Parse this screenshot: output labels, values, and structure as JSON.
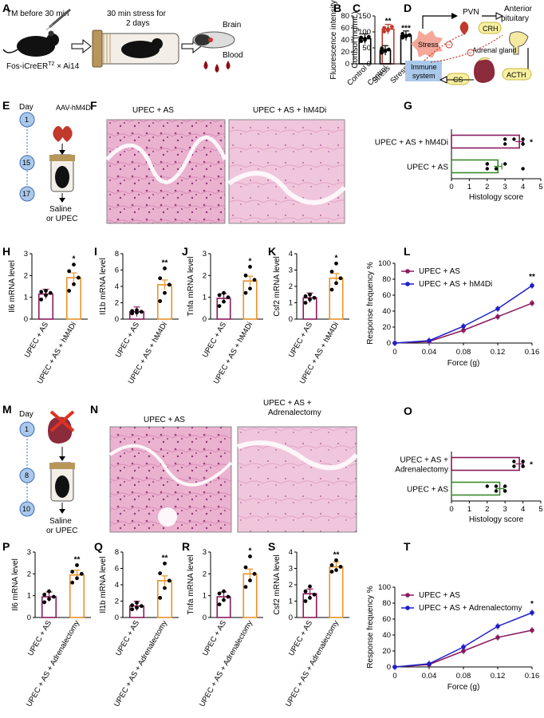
{
  "colors": {
    "purple": "#8b1a5e",
    "orange": "#e8922a",
    "green": "#3a8a2a",
    "blue": "#1f1fc8",
    "red_marker": "#c0392b",
    "sky": "#aac8ea",
    "he_pink": "#e6a8c8",
    "he_dark": "#b45a96"
  },
  "panels": {
    "A": {
      "label": "A",
      "tm": "TM before 30 min",
      "stress": "30 min stress for",
      "stress2": "2 days",
      "mouse": "Fos-iCreER",
      "sup": "T2",
      "mouse2": " × Ai14",
      "brain": "Brain",
      "blood": "Blood"
    },
    "D": {
      "label": "D",
      "stress": "Stress",
      "pvn": "PVN",
      "crh": "CRH",
      "anterior": "Anterior",
      "pituitary": "pituitary",
      "adrenal": "Adrenal gland",
      "immune": "Immune",
      "system": "system",
      "cs": "CS",
      "acth": "ACTH"
    },
    "E": {
      "label": "E",
      "day": "Day",
      "d1": "1",
      "d2": "15",
      "d3": "17",
      "virus": "AAV-hM4Di",
      "saline": "Saline",
      "upec": "or UPEC"
    },
    "F": {
      "label": "F",
      "left": "UPEC + AS",
      "right": "UPEC + AS + hM4Di"
    },
    "M": {
      "label": "M",
      "day": "Day",
      "d1": "1",
      "d2": "8",
      "d3": "10",
      "saline": "Saline",
      "upec": "or UPEC"
    },
    "N": {
      "label": "N",
      "left": "UPEC + AS",
      "right1": "UPEC + AS +",
      "right2": "Adrenalectomy"
    }
  },
  "chart_data": [
    {
      "id": "B",
      "type": "bar",
      "label": "B",
      "categories": [
        "Control",
        "Stress"
      ],
      "values": [
        42,
        58
      ],
      "ylabel": "Fluorescence intensity",
      "ylim": [
        0,
        80
      ],
      "yticks": [
        0,
        20,
        40,
        60,
        80
      ],
      "sig": "**",
      "points": [
        [
          38,
          42,
          45,
          44,
          40
        ],
        [
          54,
          58,
          62,
          60,
          56
        ]
      ],
      "colors": [
        "#000000",
        "#c0392b"
      ]
    },
    {
      "id": "C",
      "type": "bar",
      "label": "C",
      "categories": [
        "Control",
        "Stress"
      ],
      "values": [
        42,
        88
      ],
      "ylabel": "Cortisol (ng/mL)",
      "ylim": [
        0,
        150
      ],
      "yticks": [
        0,
        50,
        100,
        150
      ],
      "sig": "***",
      "points": [
        [
          35,
          40,
          45,
          48,
          42
        ],
        [
          82,
          86,
          90,
          94,
          88
        ]
      ],
      "colors": [
        "#000000",
        "#000000"
      ]
    },
    {
      "id": "G",
      "type": "hbar",
      "label": "G",
      "categories": [
        "UPEC + AS + hM4Di",
        "UPEC + AS"
      ],
      "values": [
        3.8,
        2.6
      ],
      "xlabel": "Histology score",
      "xlim": [
        0,
        5
      ],
      "xticks": [
        0,
        1,
        2,
        3,
        4,
        5
      ],
      "sig": "*",
      "points": [
        [
          3,
          3,
          3.5,
          4,
          4,
          4
        ],
        [
          2,
          2,
          2,
          2.5,
          3,
          4
        ]
      ],
      "colors": [
        "#8b1a5e",
        "#3a8a2a"
      ]
    },
    {
      "id": "H",
      "type": "bar",
      "label": "H",
      "categories": [
        "UPEC + AS",
        "UPEC + AS + hM4Di"
      ],
      "values": [
        1.15,
        1.9
      ],
      "ylabel": "Il6 mRNA level",
      "ylim": [
        0,
        3
      ],
      "yticks": [
        0,
        1,
        2,
        3
      ],
      "sig": "*",
      "points": [
        [
          0.9,
          1.1,
          1.2,
          1.25,
          1.3
        ],
        [
          1.3,
          1.6,
          1.9,
          2.2,
          2.5
        ]
      ],
      "colors": [
        "#8b1a5e",
        "#e8922a"
      ]
    },
    {
      "id": "I",
      "type": "bar",
      "label": "I",
      "categories": [
        "UPEC + AS",
        "UPEC + AS + hM4Di"
      ],
      "values": [
        0.9,
        4.2
      ],
      "ylabel": "Il1b mRNA level",
      "ylim": [
        0,
        8
      ],
      "yticks": [
        0,
        2,
        4,
        6,
        8
      ],
      "sig": "**",
      "points": [
        [
          0.7,
          0.8,
          0.9,
          1.0,
          1.1
        ],
        [
          2.2,
          3.2,
          4.2,
          5.0,
          6.2
        ]
      ],
      "colors": [
        "#8b1a5e",
        "#e8922a"
      ]
    },
    {
      "id": "J",
      "type": "bar",
      "label": "J",
      "categories": [
        "UPEC + AS",
        "UPEC + AS + hM4Di"
      ],
      "values": [
        0.95,
        1.75
      ],
      "ylabel": "Tnfa mRNA level",
      "ylim": [
        0,
        3
      ],
      "yticks": [
        0,
        1,
        2,
        3
      ],
      "sig": "*",
      "points": [
        [
          0.6,
          0.8,
          1.0,
          1.1,
          1.2
        ],
        [
          1.2,
          1.4,
          1.8,
          2.0,
          2.4
        ]
      ],
      "colors": [
        "#8b1a5e",
        "#e8922a"
      ]
    },
    {
      "id": "K",
      "type": "bar",
      "label": "K",
      "categories": [
        "UPEC + AS",
        "UPEC + AS + hM4Di"
      ],
      "values": [
        1.3,
        2.5
      ],
      "ylabel": "Csf2 mRNA level",
      "ylim": [
        0,
        4
      ],
      "yticks": [
        0,
        1,
        2,
        3,
        4
      ],
      "sig": "*",
      "points": [
        [
          1.0,
          1.2,
          1.3,
          1.4,
          1.5
        ],
        [
          1.8,
          2.2,
          2.5,
          2.9,
          3.4
        ]
      ],
      "colors": [
        "#8b1a5e",
        "#e8922a"
      ]
    },
    {
      "id": "L",
      "type": "line",
      "label": "L",
      "x": [
        0,
        0.04,
        0.08,
        0.12,
        0.16
      ],
      "xlabel": "Force (g)",
      "ylabel": "Response frequency %",
      "ylim": [
        0,
        100
      ],
      "yticks": [
        0,
        20,
        40,
        60,
        80,
        100
      ],
      "xticks": [
        "0",
        "0.04",
        "0.08",
        "0.12",
        "0.16"
      ],
      "sig": "**",
      "series": [
        {
          "name": "UPEC + AS",
          "values": [
            0,
            2,
            16,
            33,
            50
          ],
          "color": "#8b1a5e"
        },
        {
          "name": "UPEC + AS + hM4Di",
          "values": [
            0,
            3,
            21,
            43,
            72
          ],
          "color": "#1f1fc8"
        }
      ]
    },
    {
      "id": "O",
      "type": "hbar",
      "label": "O",
      "categories": [
        "UPEC + AS + Adrenalectomy",
        "UPEC + AS"
      ],
      "values": [
        3.8,
        2.7
      ],
      "xlabel": "Histology score",
      "xlim": [
        0,
        5
      ],
      "xticks": [
        0,
        1,
        2,
        3,
        4,
        5
      ],
      "sig": "*",
      "points": [
        [
          3.5,
          3.5,
          4,
          4,
          4,
          4
        ],
        [
          2,
          2.5,
          2.5,
          3,
          3,
          3
        ]
      ],
      "colors": [
        "#8b1a5e",
        "#3a8a2a"
      ]
    },
    {
      "id": "P",
      "type": "bar",
      "label": "P",
      "categories": [
        "UPEC + AS",
        "UPEC + AS + Adrenalectomy"
      ],
      "values": [
        0.95,
        1.95
      ],
      "ylabel": "Il6 mRNA level",
      "ylim": [
        0,
        3
      ],
      "yticks": [
        0,
        1,
        2,
        3
      ],
      "sig": "**",
      "points": [
        [
          0.7,
          0.85,
          0.95,
          1.05,
          1.2
        ],
        [
          1.6,
          1.8,
          2.0,
          2.1,
          2.4
        ]
      ],
      "colors": [
        "#8b1a5e",
        "#e8922a"
      ]
    },
    {
      "id": "Q",
      "type": "bar",
      "label": "Q",
      "categories": [
        "UPEC + AS",
        "UPEC + AS + Adrenalectomy"
      ],
      "values": [
        1.4,
        4.5
      ],
      "ylabel": "Il1b mRNA level",
      "ylim": [
        0,
        8
      ],
      "yticks": [
        0,
        2,
        4,
        6,
        8
      ],
      "sig": "**",
      "points": [
        [
          1.0,
          1.2,
          1.4,
          1.5,
          1.8
        ],
        [
          2.4,
          3.6,
          4.5,
          5.4,
          6.6
        ]
      ],
      "colors": [
        "#8b1a5e",
        "#e8922a"
      ]
    },
    {
      "id": "R",
      "type": "bar",
      "label": "R",
      "categories": [
        "UPEC + AS",
        "UPEC + AS + Adrenalectomy"
      ],
      "values": [
        0.95,
        2.0
      ],
      "ylabel": "Tnfa mRNA level",
      "ylim": [
        0,
        3
      ],
      "yticks": [
        0,
        1,
        2,
        3
      ],
      "sig": "*",
      "points": [
        [
          0.6,
          0.8,
          0.95,
          1.1,
          1.2
        ],
        [
          1.4,
          1.7,
          2.0,
          2.3,
          2.8
        ]
      ],
      "colors": [
        "#8b1a5e",
        "#e8922a"
      ]
    },
    {
      "id": "S",
      "type": "bar",
      "label": "S",
      "categories": [
        "UPEC + AS",
        "UPEC + AS + Adrenalectomy"
      ],
      "values": [
        1.45,
        3.1
      ],
      "ylabel": "Csf2 mRNA level",
      "ylim": [
        0,
        4
      ],
      "yticks": [
        0,
        1,
        2,
        3,
        4
      ],
      "sig": "**",
      "points": [
        [
          1.0,
          1.2,
          1.4,
          1.6,
          1.9
        ],
        [
          2.8,
          2.9,
          3.1,
          3.2,
          3.5
        ]
      ],
      "colors": [
        "#8b1a5e",
        "#e8922a"
      ]
    },
    {
      "id": "T",
      "type": "line",
      "label": "T",
      "x": [
        0,
        0.04,
        0.08,
        0.12,
        0.16
      ],
      "xlabel": "Force (g)",
      "ylabel": "Response frequency %",
      "ylim": [
        0,
        100
      ],
      "yticks": [
        0,
        20,
        40,
        60,
        80,
        100
      ],
      "xticks": [
        "0",
        "0.04",
        "0.08",
        "0.12",
        "0.16"
      ],
      "sig": "*",
      "series": [
        {
          "name": "UPEC + AS",
          "values": [
            0,
            3,
            20,
            37,
            46
          ],
          "color": "#8b1a5e"
        },
        {
          "name": "UPEC + AS + Adrenalectomy",
          "values": [
            0,
            4,
            25,
            51,
            68
          ],
          "color": "#1f1fc8"
        }
      ]
    }
  ]
}
